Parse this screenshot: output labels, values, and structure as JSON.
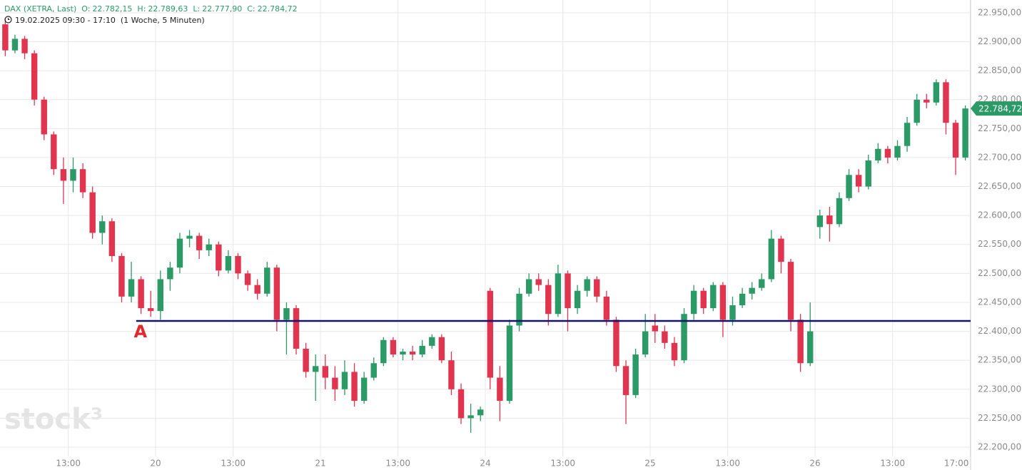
{
  "chart_data": {
    "type": "candlestick",
    "instrument": "DAX (XETRA, Last)",
    "quote": [
      {
        "key": "O:",
        "text": "22.782,15"
      },
      {
        "key": "H:",
        "text": "22.789,63"
      },
      {
        "key": "L:",
        "text": "22.777,90"
      },
      {
        "key": "C:",
        "text": "22.784,72"
      }
    ],
    "range": "19.02.2025 09:30 - 17:10",
    "period": "(1 Woche, 5 Minuten)",
    "watermark": "stock³",
    "up_color": "#2b9a66",
    "down_color": "#e0344f",
    "grid": true,
    "x": [
      "2025-02-19 09:30",
      "2025-02-19 10:00",
      "2025-02-19 10:30",
      "2025-02-19 11:00",
      "2025-02-19 11:30",
      "2025-02-19 12:00",
      "2025-02-19 12:30",
      "2025-02-19 13:00",
      "2025-02-19 13:30",
      "2025-02-19 14:00",
      "2025-02-19 14:30",
      "2025-02-19 15:00",
      "2025-02-19 15:30",
      "2025-02-19 16:00",
      "2025-02-19 16:30",
      "2025-02-19 17:00",
      "2025-02-20 09:00",
      "2025-02-20 09:30",
      "2025-02-20 10:00",
      "2025-02-20 10:30",
      "2025-02-20 11:00",
      "2025-02-20 11:30",
      "2025-02-20 12:00",
      "2025-02-20 12:30",
      "2025-02-20 13:00",
      "2025-02-20 13:30",
      "2025-02-20 14:00",
      "2025-02-20 14:30",
      "2025-02-20 15:00",
      "2025-02-20 15:30",
      "2025-02-20 16:00",
      "2025-02-20 16:30",
      "2025-02-20 17:00",
      "2025-02-21 09:00",
      "2025-02-21 09:30",
      "2025-02-21 10:00",
      "2025-02-21 10:30",
      "2025-02-21 11:00",
      "2025-02-21 11:30",
      "2025-02-21 12:00",
      "2025-02-21 12:30",
      "2025-02-21 13:00",
      "2025-02-21 13:30",
      "2025-02-21 14:00",
      "2025-02-21 14:30",
      "2025-02-21 15:00",
      "2025-02-21 15:30",
      "2025-02-21 16:00",
      "2025-02-21 16:30",
      "2025-02-21 17:00",
      "2025-02-24 09:00",
      "2025-02-24 09:30",
      "2025-02-24 10:00",
      "2025-02-24 10:30",
      "2025-02-24 11:00",
      "2025-02-24 11:30",
      "2025-02-24 12:00",
      "2025-02-24 12:30",
      "2025-02-24 13:00",
      "2025-02-24 13:30",
      "2025-02-24 14:00",
      "2025-02-24 14:30",
      "2025-02-24 15:00",
      "2025-02-24 15:30",
      "2025-02-24 16:00",
      "2025-02-24 16:30",
      "2025-02-24 17:00",
      "2025-02-25 09:00",
      "2025-02-25 09:30",
      "2025-02-25 10:00",
      "2025-02-25 10:30",
      "2025-02-25 11:00",
      "2025-02-25 11:30",
      "2025-02-25 12:00",
      "2025-02-25 12:30",
      "2025-02-25 13:00",
      "2025-02-25 13:30",
      "2025-02-25 14:00",
      "2025-02-25 14:30",
      "2025-02-25 15:00",
      "2025-02-25 15:30",
      "2025-02-25 16:00",
      "2025-02-25 16:30",
      "2025-02-25 17:00",
      "2025-02-26 09:00",
      "2025-02-26 09:30",
      "2025-02-26 10:00",
      "2025-02-26 10:30",
      "2025-02-26 11:00",
      "2025-02-26 11:30",
      "2025-02-26 12:00",
      "2025-02-26 12:30",
      "2025-02-26 13:00",
      "2025-02-26 13:30",
      "2025-02-26 14:00",
      "2025-02-26 14:30",
      "2025-02-26 15:00",
      "2025-02-26 15:30",
      "2025-02-26 16:00",
      "2025-02-26 16:30"
    ],
    "open": [
      22930,
      22885,
      22905,
      22880,
      22800,
      22740,
      22680,
      22660,
      22680,
      22640,
      22570,
      22590,
      22530,
      22460,
      22490,
      22440,
      22435,
      22490,
      22510,
      22560,
      22565,
      22540,
      22550,
      22505,
      22530,
      22500,
      22480,
      22465,
      22510,
      22420,
      22440,
      22370,
      22330,
      22340,
      22320,
      22300,
      22330,
      22280,
      22320,
      22345,
      22385,
      22360,
      22365,
      22360,
      22375,
      22390,
      22350,
      22300,
      22250,
      22255,
      22470,
      22320,
      22280,
      22410,
      22465,
      22490,
      22480,
      22430,
      22500,
      22440,
      22470,
      22490,
      22460,
      22420,
      22340,
      22290,
      22360,
      22410,
      22400,
      22380,
      22350,
      22430,
      22470,
      22440,
      22480,
      22420,
      22445,
      22465,
      22475,
      22490,
      22560,
      22520,
      22420,
      22345,
      22580,
      22600,
      22585,
      22630,
      22670,
      22650,
      22695,
      22715,
      22700,
      22720,
      22760,
      22800,
      22795,
      22830,
      22760,
      22700
    ],
    "high": [
      22940,
      22912,
      22910,
      22885,
      22805,
      22745,
      22700,
      22700,
      22690,
      22650,
      22600,
      22595,
      22535,
      22520,
      22495,
      22470,
      22505,
      22520,
      22570,
      22575,
      22570,
      22560,
      22555,
      22540,
      22535,
      22505,
      22490,
      22520,
      22515,
      22450,
      22445,
      22380,
      22360,
      22360,
      22340,
      22350,
      22345,
      22330,
      22355,
      22390,
      22390,
      22370,
      22375,
      22385,
      22395,
      22395,
      22365,
      22310,
      22275,
      22270,
      22475,
      22340,
      22420,
      22475,
      22500,
      22500,
      22490,
      22515,
      22505,
      22480,
      22495,
      22495,
      22470,
      22425,
      22350,
      22370,
      22430,
      22430,
      22410,
      22390,
      22440,
      22480,
      22475,
      22485,
      22485,
      22460,
      22475,
      22485,
      22500,
      22575,
      22565,
      22525,
      22430,
      22450,
      22610,
      22615,
      22640,
      22680,
      22680,
      22705,
      22725,
      22720,
      22730,
      22770,
      22810,
      22810,
      22835,
      22835,
      22765,
      22790
    ],
    "low": [
      22875,
      22880,
      22870,
      22790,
      22730,
      22670,
      22620,
      22640,
      22630,
      22560,
      22550,
      22520,
      22450,
      22450,
      22430,
      22425,
      22420,
      22470,
      22500,
      22545,
      22525,
      22530,
      22495,
      22500,
      22490,
      22470,
      22455,
      22460,
      22400,
      22360,
      22360,
      22320,
      22280,
      22300,
      22280,
      22290,
      22270,
      22275,
      22315,
      22340,
      22355,
      22350,
      22350,
      22355,
      22370,
      22345,
      22290,
      22240,
      22225,
      22245,
      22300,
      22245,
      22275,
      22400,
      22460,
      22470,
      22410,
      22425,
      22400,
      22430,
      22460,
      22450,
      22410,
      22330,
      22240,
      22285,
      22355,
      22380,
      22370,
      22340,
      22345,
      22420,
      22430,
      22435,
      22390,
      22410,
      22440,
      22455,
      22470,
      22485,
      22500,
      22400,
      22330,
      22340,
      22560,
      22555,
      22580,
      22625,
      22640,
      22645,
      22690,
      22690,
      22695,
      22710,
      22755,
      22785,
      22790,
      22740,
      22670,
      22695
    ],
    "close": [
      22885,
      22905,
      22880,
      22800,
      22740,
      22680,
      22660,
      22680,
      22640,
      22570,
      22590,
      22530,
      22460,
      22490,
      22440,
      22435,
      22490,
      22510,
      22560,
      22565,
      22540,
      22550,
      22505,
      22530,
      22500,
      22480,
      22465,
      22510,
      22420,
      22440,
      22370,
      22330,
      22340,
      22320,
      22300,
      22330,
      22280,
      22320,
      22345,
      22385,
      22360,
      22365,
      22360,
      22375,
      22390,
      22350,
      22300,
      22250,
      22255,
      22265,
      22320,
      22280,
      22410,
      22465,
      22490,
      22480,
      22430,
      22500,
      22440,
      22470,
      22490,
      22460,
      22420,
      22340,
      22290,
      22360,
      22400,
      22400,
      22380,
      22350,
      22430,
      22470,
      22440,
      22480,
      22420,
      22445,
      22465,
      22475,
      22490,
      22560,
      22520,
      22420,
      22345,
      22400,
      22600,
      22585,
      22630,
      22670,
      22650,
      22695,
      22715,
      22700,
      22720,
      22760,
      22800,
      22795,
      22830,
      22760,
      22700,
      22784.72
    ],
    "ylim": [
      22184,
      22972
    ],
    "yticks": [
      {
        "value": 22200,
        "label": "22.200,00"
      },
      {
        "value": 22250,
        "label": "22.250,00"
      },
      {
        "value": 22300,
        "label": "22.300,00"
      },
      {
        "value": 22350,
        "label": "22.350,00"
      },
      {
        "value": 22400,
        "label": "22.400,00"
      },
      {
        "value": 22450,
        "label": "22.450,00"
      },
      {
        "value": 22500,
        "label": "22.500,00"
      },
      {
        "value": 22550,
        "label": "22.550,00"
      },
      {
        "value": 22600,
        "label": "22.600,00"
      },
      {
        "value": 22650,
        "label": "22.650,00"
      },
      {
        "value": 22700,
        "label": "22.700,00"
      },
      {
        "value": 22750,
        "label": "22.750,00"
      },
      {
        "value": 22800,
        "label": "22.800,00"
      },
      {
        "value": 22850,
        "label": "22.850,00"
      },
      {
        "value": 22900,
        "label": "22.900,00"
      },
      {
        "value": 22950,
        "label": "22.950,00"
      }
    ],
    "xticks": [
      {
        "value": "2025-02-19 13:00",
        "label": "13:00"
      },
      {
        "value": "2025-02-20 09:00",
        "label": "20"
      },
      {
        "value": "2025-02-20 13:00",
        "label": "13:00"
      },
      {
        "value": "2025-02-21 09:00",
        "label": "21"
      },
      {
        "value": "2025-02-21 13:00",
        "label": "13:00"
      },
      {
        "value": "2025-02-24 09:00",
        "label": "24"
      },
      {
        "value": "2025-02-24 13:00",
        "label": "13:00"
      },
      {
        "value": "2025-02-25 09:00",
        "label": "25"
      },
      {
        "value": "2025-02-25 13:00",
        "label": "13:00"
      },
      {
        "value": "2025-02-26 09:00",
        "label": "26"
      },
      {
        "value": "2025-02-26 13:00",
        "label": "13:00"
      },
      {
        "value": "2025-02-26 17:00",
        "label": "17:00"
      }
    ],
    "last_price": {
      "value": 22784.72,
      "label": "22.784,72",
      "color": "#2b9a66"
    },
    "hline": {
      "value": 22418,
      "start": "2025-02-19 16:30",
      "label": "A",
      "color": "#14146e",
      "label_color": "#e0282e"
    }
  }
}
